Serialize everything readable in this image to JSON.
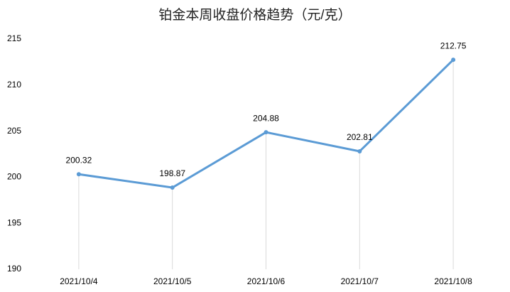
{
  "chart_data": {
    "type": "line",
    "title": "铂金本周收盘价格趋势（元/克）",
    "categories": [
      "2021/10/4",
      "2021/10/5",
      "2021/10/6",
      "2021/10/7",
      "2021/10/8"
    ],
    "values": [
      200.32,
      198.87,
      204.88,
      202.81,
      212.75
    ],
    "color": "#5b9bd5",
    "ylim": [
      190,
      215
    ],
    "yticks": [
      190,
      195,
      200,
      205,
      210,
      215
    ],
    "grid": false,
    "drop_lines": true
  }
}
